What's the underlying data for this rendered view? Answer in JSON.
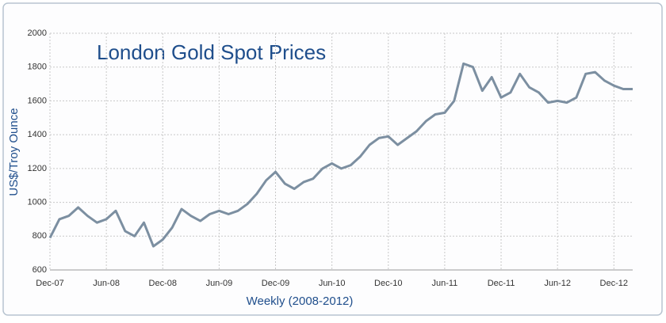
{
  "chart_data": {
    "type": "line",
    "title": "London Gold Spot Prices",
    "x_label": "Weekly (2008-2012)",
    "y_label": "US$/Troy Ounce",
    "categories": [
      "Dec-07",
      null,
      null,
      null,
      null,
      null,
      "Jun-08",
      null,
      null,
      null,
      null,
      null,
      "Dec-08",
      null,
      null,
      null,
      null,
      null,
      "Jun-09",
      null,
      null,
      null,
      null,
      null,
      "Dec-09",
      null,
      null,
      null,
      null,
      null,
      "Jun-10",
      null,
      null,
      null,
      null,
      null,
      "Dec-10",
      null,
      null,
      null,
      null,
      null,
      "Jun-11",
      null,
      null,
      null,
      null,
      null,
      "Dec-11",
      null,
      null,
      null,
      null,
      null,
      "Jun-12",
      null,
      null,
      null,
      null,
      null,
      "Dec-12",
      null,
      null
    ],
    "values": [
      790,
      900,
      920,
      970,
      920,
      880,
      900,
      950,
      830,
      800,
      880,
      740,
      780,
      850,
      960,
      920,
      890,
      930,
      950,
      930,
      950,
      990,
      1050,
      1130,
      1180,
      1110,
      1080,
      1120,
      1140,
      1200,
      1230,
      1200,
      1220,
      1270,
      1340,
      1380,
      1390,
      1340,
      1380,
      1420,
      1480,
      1520,
      1530,
      1600,
      1820,
      1800,
      1660,
      1740,
      1620,
      1650,
      1760,
      1680,
      1650,
      1590,
      1600,
      1590,
      1620,
      1760,
      1770,
      1720,
      1690,
      1670,
      1670
    ],
    "color": "#7c8fa1",
    "ylim": [
      600,
      2000
    ],
    "yticks": [
      600,
      800,
      1000,
      1200,
      1400,
      1600,
      1800,
      2000
    ],
    "grid": true
  }
}
